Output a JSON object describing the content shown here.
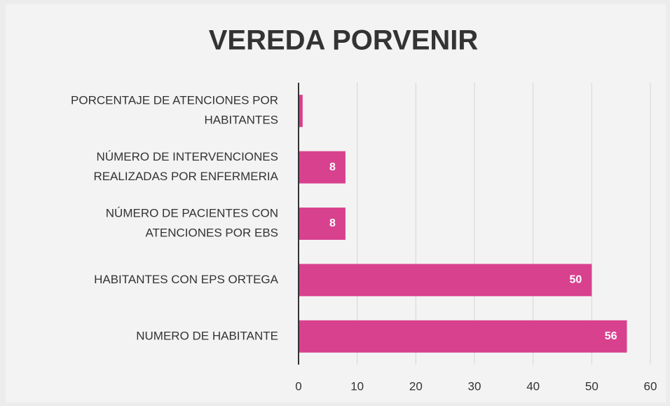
{
  "chart_data": {
    "type": "hbar",
    "title": "VEREDA  PORVENIR",
    "categories": [
      [
        "PORCENTAJE DE ATENCIONES POR",
        "HABITANTES"
      ],
      [
        "NÚMERO DE INTERVENCIONES",
        "REALIZADAS  POR ENFERMERIA"
      ],
      [
        "NÚMERO DE PACIENTES CON",
        "ATENCIONES POR EBS"
      ],
      [
        "HABITANTES CON EPS ORTEGA"
      ],
      [
        "NUMERO DE HABITANTE"
      ]
    ],
    "values": [
      0.7,
      8,
      8,
      50,
      56
    ],
    "value_labels": [
      null,
      "8",
      "8",
      "50",
      "56"
    ],
    "color": "#d8418e",
    "xlim": [
      0,
      60
    ],
    "xticks": [
      0,
      10,
      20,
      30,
      40,
      50,
      60
    ],
    "grid": true
  }
}
